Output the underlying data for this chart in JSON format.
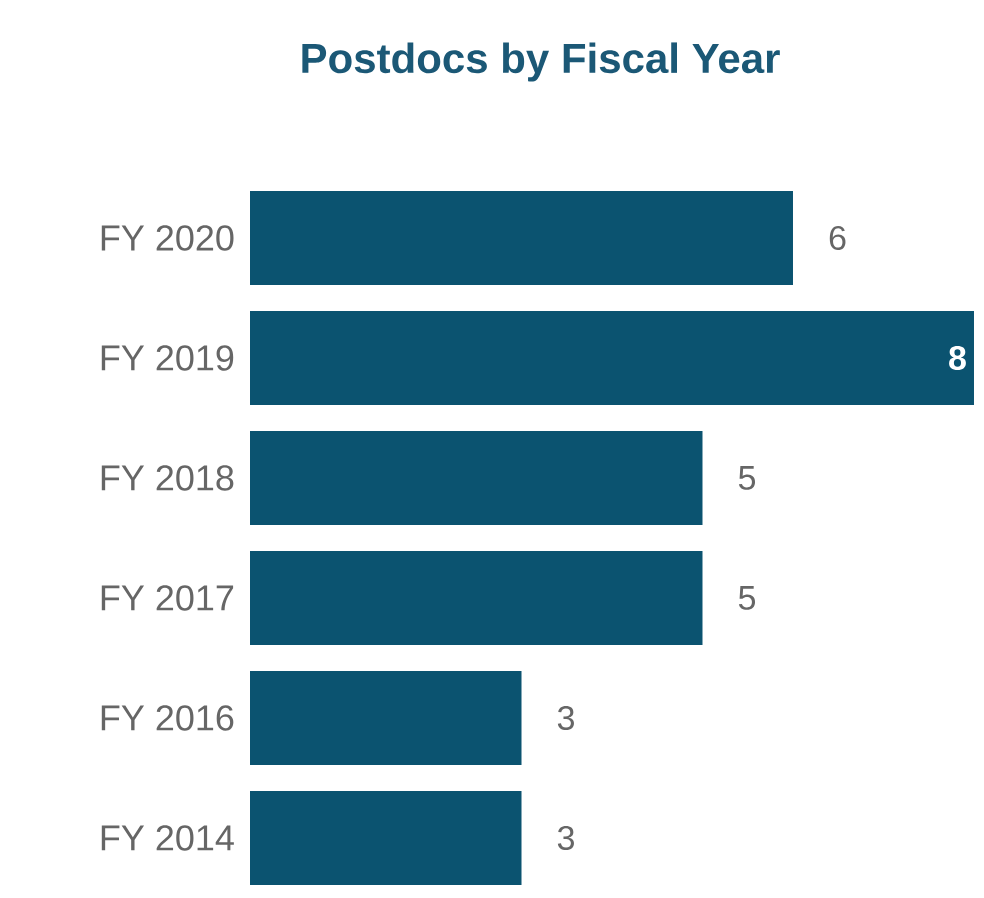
{
  "chart_data": {
    "type": "bar",
    "orientation": "horizontal",
    "title": "Postdocs by Fiscal Year",
    "categories": [
      "FY 2020",
      "FY 2019",
      "FY 2018",
      "FY 2017",
      "FY 2016",
      "FY 2014"
    ],
    "values": [
      6,
      8,
      5,
      5,
      3,
      3
    ],
    "color": "#0b5370",
    "data_labels": true,
    "tick_labels": "y"
  }
}
